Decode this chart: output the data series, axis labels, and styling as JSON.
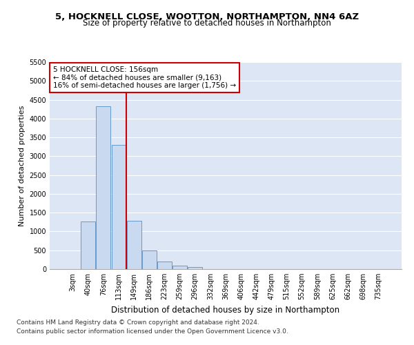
{
  "title1": "5, HOCKNELL CLOSE, WOOTTON, NORTHAMPTON, NN4 6AZ",
  "title2": "Size of property relative to detached houses in Northampton",
  "xlabel": "Distribution of detached houses by size in Northampton",
  "ylabel": "Number of detached properties",
  "bar_labels": [
    "3sqm",
    "40sqm",
    "76sqm",
    "113sqm",
    "149sqm",
    "186sqm",
    "223sqm",
    "259sqm",
    "296sqm",
    "332sqm",
    "369sqm",
    "406sqm",
    "442sqm",
    "479sqm",
    "515sqm",
    "552sqm",
    "589sqm",
    "625sqm",
    "662sqm",
    "698sqm",
    "735sqm"
  ],
  "bar_values": [
    0,
    1270,
    4320,
    3300,
    1280,
    490,
    210,
    85,
    60,
    0,
    0,
    0,
    0,
    0,
    0,
    0,
    0,
    0,
    0,
    0,
    0
  ],
  "bar_color": "#c9daf0",
  "bar_edge_color": "#6699cc",
  "vline_color": "#cc0000",
  "annotation_text": "5 HOCKNELL CLOSE: 156sqm\n← 84% of detached houses are smaller (9,163)\n16% of semi-detached houses are larger (1,756) →",
  "annotation_box_color": "#ffffff",
  "annotation_box_edge_color": "#cc0000",
  "ylim": [
    0,
    5500
  ],
  "yticks": [
    0,
    500,
    1000,
    1500,
    2000,
    2500,
    3000,
    3500,
    4000,
    4500,
    5000,
    5500
  ],
  "bg_color": "#dce6f5",
  "plot_bg_color": "#dce6f5",
  "footer1": "Contains HM Land Registry data © Crown copyright and database right 2024.",
  "footer2": "Contains public sector information licensed under the Open Government Licence v3.0.",
  "title1_fontsize": 9.5,
  "title2_fontsize": 8.5,
  "xlabel_fontsize": 8.5,
  "ylabel_fontsize": 8,
  "tick_fontsize": 7,
  "annotation_fontsize": 7.5,
  "footer_fontsize": 6.5
}
